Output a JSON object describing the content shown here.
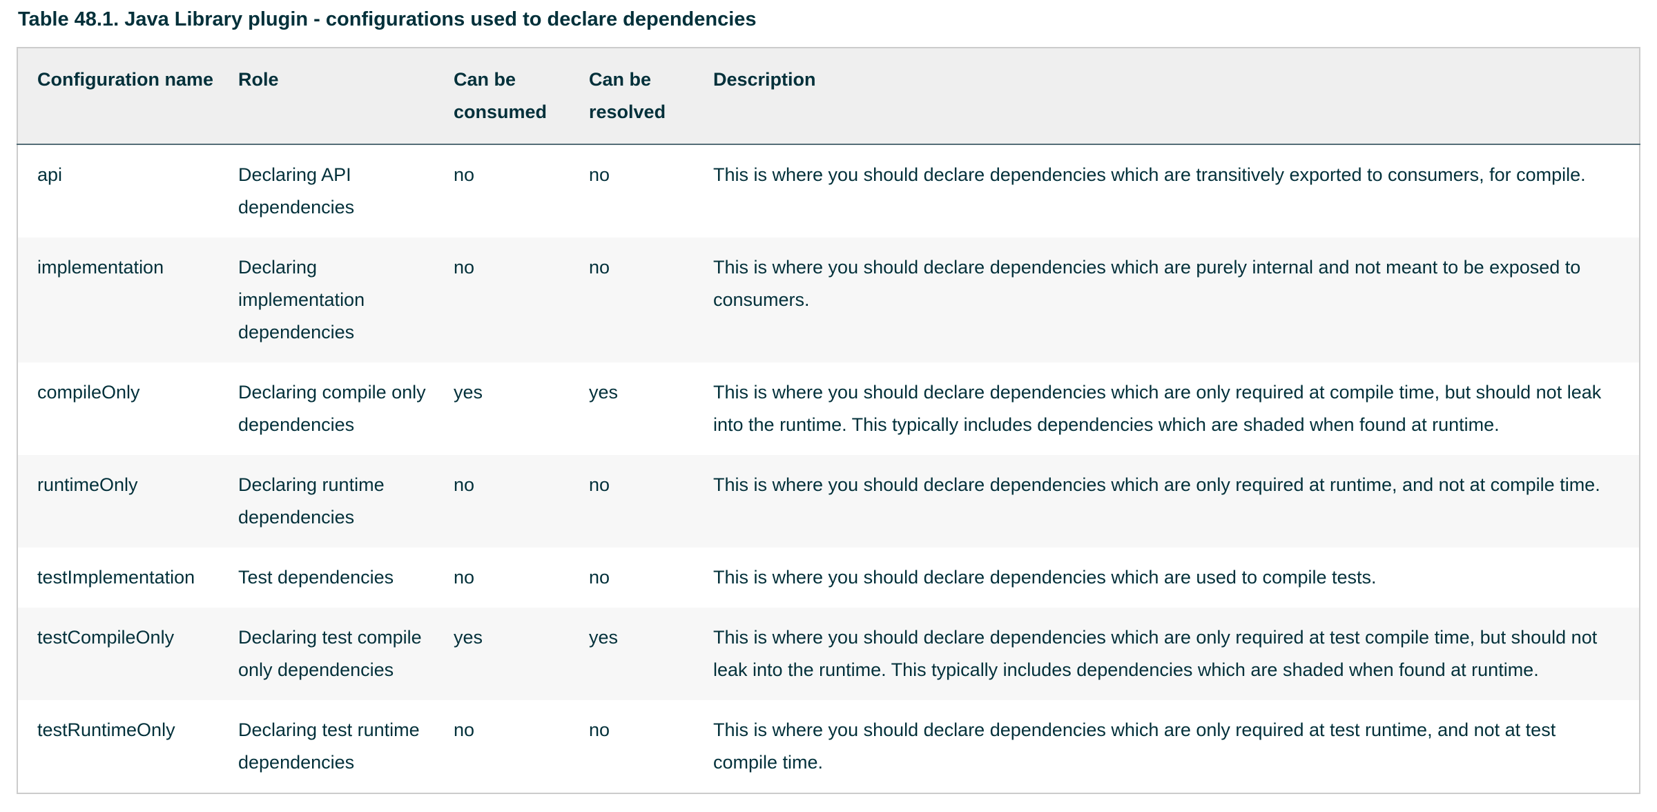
{
  "page": {
    "title": "Table 48.1. Java Library plugin - configurations used to declare dependencies"
  },
  "colors": {
    "text": "#02303a",
    "header_bg": "#efefef",
    "stripe_bg": "#f7f7f7",
    "outer_border": "#cccccc",
    "header_rule": "#546d77"
  },
  "table": {
    "headers": [
      "Configuration name",
      "Role",
      "Can be consumed",
      "Can be resolved",
      "Description"
    ],
    "rows": [
      {
        "name": "api",
        "role": "Declaring API dependencies",
        "consumable": "no",
        "resolvable": "no",
        "description": "This is where you should declare dependencies which are transitively exported to consumers, for compile."
      },
      {
        "name": "implementation",
        "role": "Declaring implementation dependencies",
        "consumable": "no",
        "resolvable": "no",
        "description": "This is where you should declare dependencies which are purely internal and not meant to be exposed to consumers."
      },
      {
        "name": "compileOnly",
        "role": "Declaring compile only dependencies",
        "consumable": "yes",
        "resolvable": "yes",
        "description": "This is where you should declare dependencies which are only required at compile time, but should not leak into the runtime. This typically includes dependencies which are shaded when found at runtime."
      },
      {
        "name": "runtimeOnly",
        "role": "Declaring runtime dependencies",
        "consumable": "no",
        "resolvable": "no",
        "description": "This is where you should declare dependencies which are only required at runtime, and not at compile time."
      },
      {
        "name": "testImplementation",
        "role": "Test dependencies",
        "consumable": "no",
        "resolvable": "no",
        "description": "This is where you should declare dependencies which are used to compile tests."
      },
      {
        "name": "testCompileOnly",
        "role": "Declaring test compile only dependencies",
        "consumable": "yes",
        "resolvable": "yes",
        "description": "This is where you should declare dependencies which are only required at test compile time, but should not leak into the runtime. This typically includes dependencies which are shaded when found at runtime."
      },
      {
        "name": "testRuntimeOnly",
        "role": "Declaring test runtime dependencies",
        "consumable": "no",
        "resolvable": "no",
        "description": "This is where you should declare dependencies which are only required at test runtime, and not at test compile time."
      }
    ]
  }
}
